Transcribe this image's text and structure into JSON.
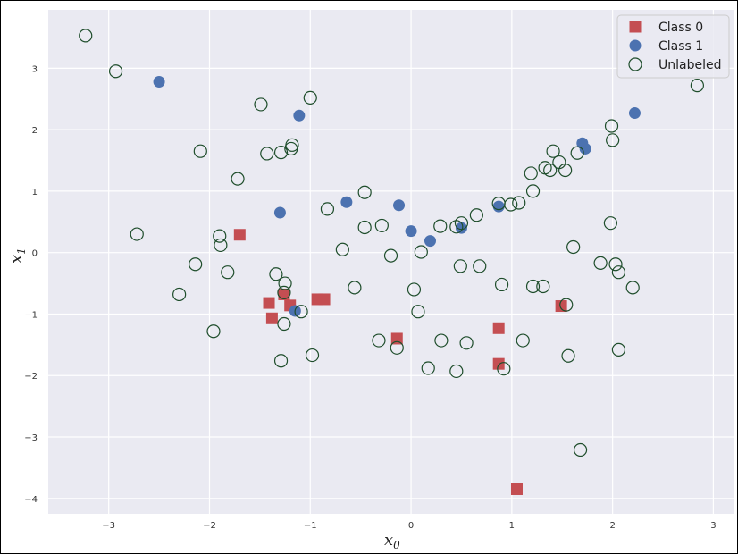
{
  "chart_data": {
    "type": "scatter",
    "title": "",
    "xlabel": "x",
    "xlabel_sub": "0",
    "ylabel": "x",
    "ylabel_sub": "1",
    "xlim": [
      -3.6,
      3.2
    ],
    "ylim": [
      -4.25,
      3.95
    ],
    "xticks": [
      -3,
      -2,
      -1,
      0,
      1,
      2,
      3
    ],
    "yticks": [
      -4,
      -3,
      -2,
      -1,
      0,
      1,
      2,
      3
    ],
    "grid": true,
    "legend_position": "top-right",
    "colors": {
      "class0": "#c44e52",
      "class1": "#4c72b0",
      "unlabeled": "#1e4d2b",
      "background": "#eaeaf2",
      "grid": "#ffffff"
    },
    "series": [
      {
        "name": "Class 0",
        "marker": "square",
        "points": [
          [
            -1.7,
            0.29
          ],
          [
            -1.41,
            -0.82
          ],
          [
            -1.38,
            -1.07
          ],
          [
            -1.26,
            -0.68
          ],
          [
            -1.2,
            -0.86
          ],
          [
            -0.93,
            -0.76
          ],
          [
            -0.86,
            -0.76
          ],
          [
            -0.14,
            -1.4
          ],
          [
            0.87,
            -1.23
          ],
          [
            0.87,
            -1.81
          ],
          [
            1.49,
            -0.87
          ],
          [
            1.05,
            -3.85
          ]
        ]
      },
      {
        "name": "Class 1",
        "marker": "circle",
        "points": [
          [
            -2.5,
            2.78
          ],
          [
            -1.11,
            2.23
          ],
          [
            -1.3,
            0.65
          ],
          [
            -0.64,
            0.82
          ],
          [
            -0.12,
            0.77
          ],
          [
            0.0,
            0.35
          ],
          [
            0.19,
            0.19
          ],
          [
            0.5,
            0.4
          ],
          [
            0.87,
            0.75
          ],
          [
            1.7,
            1.78
          ],
          [
            1.73,
            1.69
          ],
          [
            2.22,
            2.27
          ],
          [
            -1.15,
            -0.95
          ]
        ]
      },
      {
        "name": "Unlabeled",
        "marker": "open-circle",
        "points": [
          [
            -3.23,
            3.53
          ],
          [
            -2.93,
            2.95
          ],
          [
            -2.72,
            0.3
          ],
          [
            -2.3,
            -0.68
          ],
          [
            -2.14,
            -0.19
          ],
          [
            -2.09,
            1.65
          ],
          [
            -1.96,
            -1.28
          ],
          [
            -1.9,
            0.27
          ],
          [
            -1.89,
            0.12
          ],
          [
            -1.82,
            -0.32
          ],
          [
            -1.72,
            1.2
          ],
          [
            -1.49,
            2.41
          ],
          [
            -1.43,
            1.61
          ],
          [
            -1.34,
            -0.35
          ],
          [
            -1.29,
            1.63
          ],
          [
            -1.26,
            -0.65
          ],
          [
            -1.25,
            -0.5
          ],
          [
            -1.19,
            1.69
          ],
          [
            -1.18,
            1.75
          ],
          [
            -1.29,
            -1.76
          ],
          [
            -1.26,
            -1.16
          ],
          [
            -1.09,
            -0.96
          ],
          [
            -0.98,
            -1.67
          ],
          [
            -1.0,
            2.52
          ],
          [
            -0.83,
            0.71
          ],
          [
            -0.68,
            0.05
          ],
          [
            -0.56,
            -0.57
          ],
          [
            -0.46,
            0.98
          ],
          [
            -0.46,
            0.41
          ],
          [
            -0.32,
            -1.43
          ],
          [
            -0.29,
            0.44
          ],
          [
            -0.2,
            -0.05
          ],
          [
            -0.14,
            -1.55
          ],
          [
            0.03,
            -0.6
          ],
          [
            0.07,
            -0.96
          ],
          [
            0.1,
            0.01
          ],
          [
            0.17,
            -1.88
          ],
          [
            0.29,
            0.43
          ],
          [
            0.3,
            -1.43
          ],
          [
            0.45,
            0.42
          ],
          [
            0.45,
            -1.93
          ],
          [
            0.49,
            -0.22
          ],
          [
            0.5,
            0.48
          ],
          [
            0.55,
            -1.47
          ],
          [
            0.65,
            0.61
          ],
          [
            0.68,
            -0.22
          ],
          [
            0.87,
            0.8
          ],
          [
            0.9,
            -0.52
          ],
          [
            0.92,
            -1.89
          ],
          [
            0.99,
            0.78
          ],
          [
            1.07,
            0.81
          ],
          [
            1.11,
            -1.43
          ],
          [
            1.19,
            1.29
          ],
          [
            1.21,
            1.0
          ],
          [
            1.21,
            -0.55
          ],
          [
            1.31,
            -0.55
          ],
          [
            1.33,
            1.38
          ],
          [
            1.38,
            1.34
          ],
          [
            1.41,
            1.65
          ],
          [
            1.47,
            1.47
          ],
          [
            1.53,
            1.34
          ],
          [
            1.54,
            -0.85
          ],
          [
            1.56,
            -1.68
          ],
          [
            1.61,
            0.09
          ],
          [
            1.65,
            1.62
          ],
          [
            1.68,
            -3.21
          ],
          [
            1.88,
            -0.17
          ],
          [
            1.98,
            0.48
          ],
          [
            1.99,
            2.06
          ],
          [
            2.0,
            1.83
          ],
          [
            2.03,
            -0.19
          ],
          [
            2.06,
            -0.32
          ],
          [
            2.06,
            -1.58
          ],
          [
            2.2,
            -0.57
          ],
          [
            2.84,
            2.72
          ]
        ]
      }
    ]
  }
}
